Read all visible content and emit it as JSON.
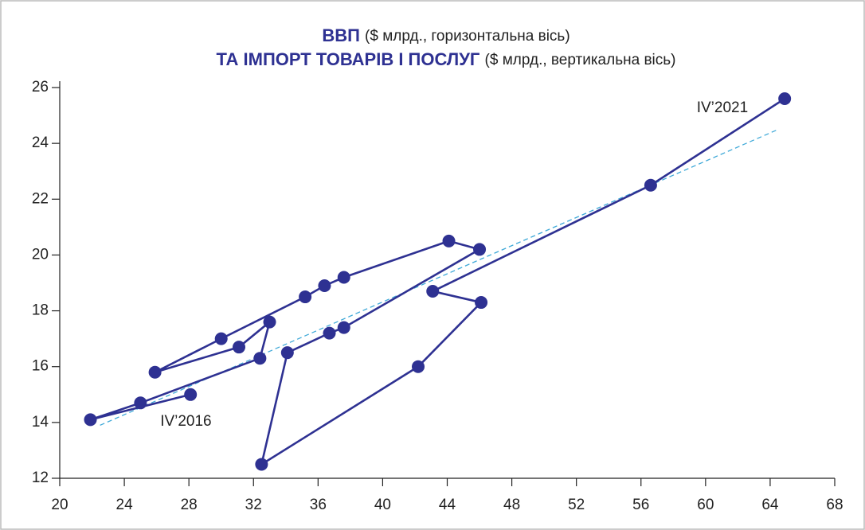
{
  "chart_data": {
    "type": "line",
    "title": [
      {
        "bold": "ВВП",
        "rest": "($ млрд., горизонтальна вісь)"
      },
      {
        "bold": "ТА ІМПОРТ ТОВАРІВ І ПОСЛУГ",
        "rest": "($ млрд., вертикальна вісь)"
      }
    ],
    "x": [
      28.1,
      21.9,
      25.0,
      32.4,
      33.0,
      31.1,
      25.9,
      30.0,
      35.2,
      36.4,
      37.6,
      44.1,
      46.0,
      37.6,
      36.7,
      34.1,
      32.5,
      42.2,
      46.1,
      43.1,
      56.6,
      64.9
    ],
    "series": [
      {
        "color": "#2e3192",
        "values": [
          15.0,
          14.1,
          14.7,
          16.3,
          17.6,
          16.7,
          15.8,
          17.0,
          18.5,
          18.9,
          19.2,
          20.5,
          20.2,
          17.4,
          17.2,
          16.5,
          12.5,
          16.0,
          18.3,
          18.7,
          22.5,
          25.6
        ]
      }
    ],
    "trend": {
      "color": "#3fa9d8",
      "x": [
        22.5,
        64.5
      ],
      "values": [
        13.9,
        24.5
      ]
    },
    "annotations": [
      {
        "text": "IV’2016",
        "point": 0
      },
      {
        "text": "IV’2021",
        "point": 21
      }
    ],
    "xlim": [
      20,
      68
    ],
    "xticks": [
      20,
      24,
      28,
      32,
      36,
      40,
      44,
      48,
      52,
      56,
      60,
      64,
      68
    ],
    "ylim": [
      12,
      26
    ],
    "yticks": [
      12,
      14,
      16,
      18,
      20,
      22,
      24,
      26
    ]
  }
}
